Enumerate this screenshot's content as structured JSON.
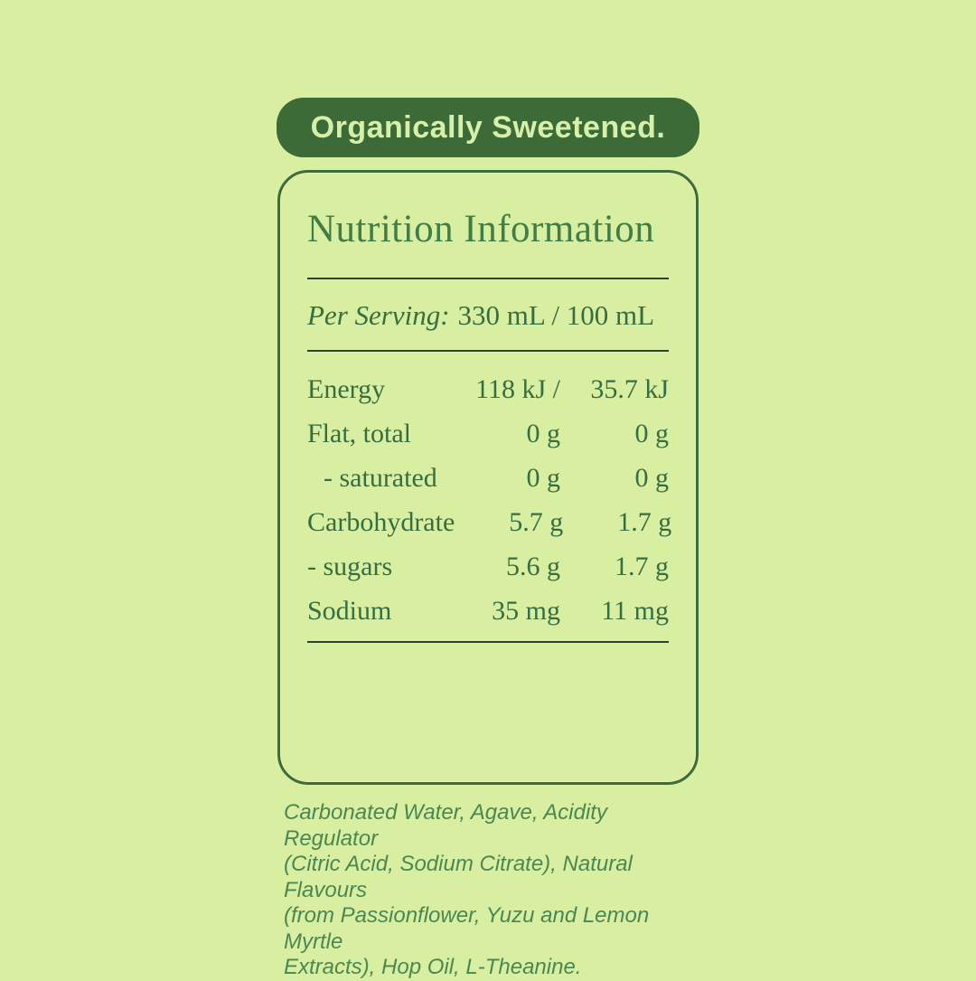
{
  "badge": {
    "label": "Organically Sweetened."
  },
  "panel": {
    "title": "Nutrition Information",
    "serving_label": "Per Serving:",
    "serving_value": "330 mL / 100 mL",
    "rows": [
      {
        "label": "Energy",
        "per_serving": "118 kJ /",
        "per_100": "35.7 kJ"
      },
      {
        "label": "Flat, total",
        "per_serving": "0 g",
        "per_100": "0 g"
      },
      {
        "label": "- saturated",
        "per_serving": "0 g",
        "per_100": "0 g"
      },
      {
        "label": "Carbohydrate",
        "per_serving": "5.7 g",
        "per_100": "1.7 g"
      },
      {
        "label": "- sugars",
        "per_serving": "5.6 g",
        "per_100": "1.7 g"
      },
      {
        "label": "Sodium",
        "per_serving": "35 mg",
        "per_100": "11 mg"
      }
    ]
  },
  "ingredients": {
    "text": "Carbonated Water, Agave, Acidity Regulator\n(Citric Acid, Sodium Citrate), Natural Flavours\n(from Passionflower, Yuzu and Lemon Myrtle\nExtracts), Hop Oil, L-Theanine."
  },
  "colors": {
    "bg": "#d8eea1",
    "badge-bg": "#3d6b38",
    "badge-text": "#d6f0aa",
    "panel-border": "#3f6b39",
    "title": "#417d46",
    "text": "#376e41",
    "rule": "#2d4132",
    "ingredients": "#4b8751"
  }
}
